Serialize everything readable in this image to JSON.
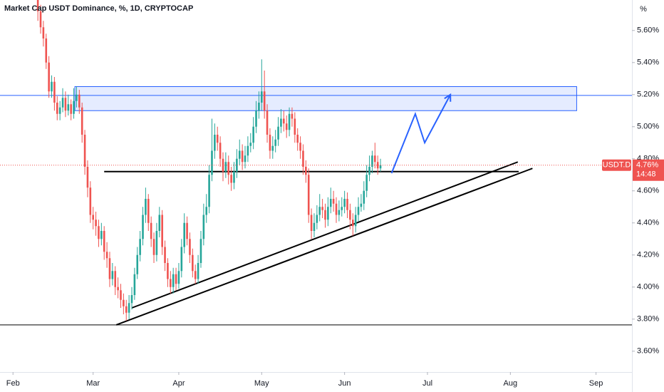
{
  "chart_data": {
    "type": "candlestick",
    "title": "Market Cap USDT Dominance, %, 1D, CRYPTOCAP",
    "y_unit": "%",
    "symbol": "USDT.D",
    "last_price": {
      "value": 4.76,
      "label": "4.76%"
    },
    "countdown": "14:48",
    "up_color": "#26a69a",
    "down_color": "#ef5350",
    "xlim": [
      -13.7,
      215
    ],
    "xticks": [
      {
        "value": -9,
        "label": "Feb"
      },
      {
        "value": 20,
        "label": "Mar"
      },
      {
        "value": 51,
        "label": "Apr"
      },
      {
        "value": 81,
        "label": "May"
      },
      {
        "value": 111,
        "label": "Jun"
      },
      {
        "value": 141,
        "label": "Jul"
      },
      {
        "value": 171,
        "label": "Aug"
      },
      {
        "value": 202,
        "label": "Sep"
      }
    ],
    "ylim": [
      3.47,
      5.79
    ],
    "yticks": [
      {
        "value": 3.6,
        "label": "3.60%"
      },
      {
        "value": 3.8,
        "label": "3.80%"
      },
      {
        "value": 4.0,
        "label": "4.00%"
      },
      {
        "value": 4.2,
        "label": "4.20%"
      },
      {
        "value": 4.4,
        "label": "4.40%"
      },
      {
        "value": 4.6,
        "label": "4.60%"
      },
      {
        "value": 4.8,
        "label": "4.80%"
      },
      {
        "value": 5.0,
        "label": "5.00%"
      },
      {
        "value": 5.2,
        "label": "5.20%"
      },
      {
        "value": 5.4,
        "label": "5.40%"
      },
      {
        "value": 5.6,
        "label": "5.60%"
      }
    ],
    "candles": {
      "open": [
        5.8,
        5.72,
        5.62,
        5.55,
        5.4,
        5.22,
        5.28,
        5.15,
        5.08,
        5.12,
        5.18,
        5.1,
        5.14,
        5.08,
        5.16,
        5.2,
        5.12,
        4.95,
        4.75,
        4.62,
        4.45,
        4.42,
        4.38,
        4.3,
        4.35,
        4.22,
        4.18,
        4.05,
        4.1,
        4.0,
        3.98,
        3.92,
        3.88,
        3.84,
        3.9,
        3.95,
        4.08,
        4.2,
        4.3,
        4.45,
        4.55,
        4.4,
        4.3,
        4.2,
        4.35,
        4.45,
        4.25,
        4.15,
        4.05,
        4.0,
        4.08,
        4.02,
        4.1,
        4.25,
        4.4,
        4.3,
        4.2,
        4.1,
        4.05,
        4.15,
        4.3,
        4.45,
        4.5,
        4.7,
        4.85,
        4.95,
        4.9,
        4.8,
        4.72,
        4.78,
        4.7,
        4.65,
        4.72,
        4.8,
        4.85,
        4.78,
        4.82,
        4.88,
        4.9,
        5.0,
        5.1,
        5.15,
        5.22,
        5.1,
        4.95,
        4.85,
        4.88,
        4.92,
        5.0,
        5.05,
        5.02,
        4.98,
        5.08,
        5.05,
        4.95,
        4.9,
        4.85,
        4.75,
        4.7,
        4.45,
        4.35,
        4.4,
        4.45,
        4.5,
        4.48,
        4.42,
        4.5,
        4.55,
        4.52,
        4.45,
        4.48,
        4.5,
        4.55,
        4.48,
        4.42,
        4.38,
        4.45,
        4.5,
        4.52,
        4.6,
        4.7,
        4.75,
        4.82,
        4.78,
        4.74
      ],
      "high": [
        5.86,
        5.76,
        5.66,
        5.58,
        5.44,
        5.32,
        5.31,
        5.19,
        5.16,
        5.24,
        5.22,
        5.2,
        5.17,
        5.24,
        5.25,
        5.23,
        5.15,
        4.98,
        4.79,
        4.66,
        4.5,
        4.47,
        4.42,
        4.4,
        4.38,
        4.28,
        4.22,
        4.15,
        4.13,
        4.06,
        4.02,
        3.96,
        3.92,
        3.95,
        4.0,
        4.12,
        4.25,
        4.35,
        4.5,
        4.62,
        4.58,
        4.44,
        4.34,
        4.4,
        4.5,
        4.48,
        4.29,
        4.18,
        4.1,
        4.12,
        4.12,
        4.15,
        4.3,
        4.46,
        4.44,
        4.34,
        4.24,
        4.14,
        4.2,
        4.35,
        4.52,
        4.58,
        4.76,
        5.05,
        5.02,
        5.0,
        4.94,
        4.84,
        4.84,
        4.82,
        4.75,
        4.78,
        4.86,
        4.92,
        4.89,
        4.88,
        4.94,
        4.96,
        5.06,
        5.16,
        5.22,
        5.42,
        5.35,
        5.14,
        4.99,
        4.94,
        4.98,
        5.06,
        5.11,
        5.1,
        5.07,
        5.12,
        5.12,
        5.09,
        4.99,
        4.94,
        4.89,
        4.79,
        4.74,
        4.49,
        4.46,
        4.51,
        4.58,
        4.55,
        4.52,
        4.56,
        4.62,
        4.6,
        4.56,
        4.54,
        4.56,
        4.6,
        4.59,
        4.52,
        4.46,
        4.5,
        4.56,
        4.58,
        4.66,
        4.76,
        4.82,
        4.85,
        4.9,
        4.82,
        4.8
      ],
      "low": [
        5.66,
        5.58,
        5.5,
        5.36,
        5.18,
        5.18,
        5.1,
        5.04,
        5.04,
        5.09,
        5.06,
        5.07,
        5.04,
        5.05,
        5.12,
        5.08,
        4.9,
        4.7,
        4.56,
        4.4,
        4.36,
        4.32,
        4.25,
        4.26,
        4.17,
        4.12,
        4.0,
        4.01,
        3.95,
        3.93,
        3.87,
        3.83,
        3.79,
        3.8,
        3.86,
        3.92,
        4.05,
        4.16,
        4.26,
        4.4,
        4.35,
        4.25,
        4.15,
        4.16,
        4.31,
        4.2,
        4.1,
        4.0,
        3.96,
        3.96,
        3.98,
        3.99,
        4.06,
        4.21,
        4.26,
        4.15,
        4.06,
        4.02,
        4.02,
        4.12,
        4.26,
        4.4,
        4.46,
        4.66,
        4.8,
        4.85,
        4.75,
        4.66,
        4.68,
        4.64,
        4.6,
        4.61,
        4.68,
        4.76,
        4.73,
        4.74,
        4.78,
        4.84,
        4.86,
        4.96,
        5.05,
        5.1,
        5.05,
        4.9,
        4.8,
        4.8,
        4.84,
        4.88,
        4.96,
        4.97,
        4.93,
        4.94,
        5.0,
        4.9,
        4.85,
        4.8,
        4.7,
        4.65,
        4.4,
        4.3,
        4.31,
        4.36,
        4.41,
        4.43,
        4.37,
        4.38,
        4.46,
        4.47,
        4.4,
        4.41,
        4.44,
        4.46,
        4.43,
        4.36,
        4.32,
        4.34,
        4.41,
        4.47,
        4.48,
        4.56,
        4.66,
        4.71,
        4.74,
        4.7,
        4.72
      ],
      "close": [
        5.72,
        5.62,
        5.55,
        5.4,
        5.22,
        5.28,
        5.15,
        5.08,
        5.12,
        5.18,
        5.1,
        5.14,
        5.08,
        5.16,
        5.2,
        5.12,
        4.95,
        4.75,
        4.62,
        4.45,
        4.42,
        4.38,
        4.3,
        4.35,
        4.22,
        4.18,
        4.05,
        4.1,
        4.0,
        3.98,
        3.92,
        3.88,
        3.84,
        3.9,
        3.95,
        4.08,
        4.2,
        4.3,
        4.45,
        4.55,
        4.4,
        4.3,
        4.2,
        4.35,
        4.45,
        4.25,
        4.15,
        4.05,
        4.0,
        4.08,
        4.02,
        4.1,
        4.25,
        4.4,
        4.3,
        4.2,
        4.1,
        4.05,
        4.15,
        4.3,
        4.45,
        4.5,
        4.7,
        4.85,
        4.95,
        4.9,
        4.8,
        4.72,
        4.78,
        4.7,
        4.65,
        4.72,
        4.8,
        4.85,
        4.78,
        4.82,
        4.88,
        4.9,
        5.0,
        5.1,
        5.15,
        5.22,
        5.1,
        4.95,
        4.85,
        4.88,
        4.92,
        5.0,
        5.05,
        5.02,
        4.98,
        5.08,
        5.05,
        4.95,
        4.9,
        4.85,
        4.75,
        4.7,
        4.45,
        4.35,
        4.4,
        4.45,
        4.5,
        4.48,
        4.42,
        4.5,
        4.55,
        4.52,
        4.45,
        4.48,
        4.5,
        4.55,
        4.48,
        4.42,
        4.38,
        4.45,
        4.5,
        4.52,
        4.6,
        4.7,
        4.75,
        4.82,
        4.78,
        4.74,
        4.76
      ]
    },
    "zone": {
      "x": [
        13.4,
        195
      ],
      "y": [
        5.1,
        5.25
      ],
      "color": "#2962ff"
    },
    "hlines": [
      {
        "value": 5.195,
        "color": "#2962ff"
      },
      {
        "value": 3.764,
        "color": "#000000"
      }
    ],
    "segments": [
      {
        "x": [
          24,
          174
        ],
        "y": [
          4.72,
          4.72
        ],
        "color": "#000000"
      },
      {
        "x": [
          28.4,
          179
        ],
        "y": [
          3.764,
          4.74
        ],
        "color": "#000000"
      },
      {
        "x": [
          34,
          173.7
        ],
        "y": [
          3.87,
          4.78
        ],
        "color": "#000000"
      }
    ],
    "arrow": {
      "x": [
        128,
        136.6,
        140,
        149.3
      ],
      "y": [
        4.71,
        5.08,
        4.9,
        5.2
      ],
      "color": "#2962ff"
    }
  }
}
